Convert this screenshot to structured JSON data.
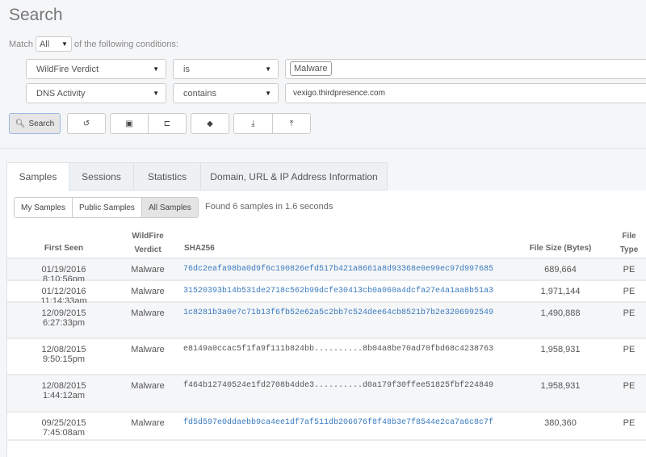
{
  "title": "Search",
  "match": {
    "prefix": "Match",
    "value": "All",
    "suffix": "of the following conditions:"
  },
  "conditions": [
    {
      "field": "WildFire Verdict",
      "operator": "is",
      "value": "Malware",
      "value_style": "tag"
    },
    {
      "field": "DNS Activity",
      "operator": "contains",
      "value": "vexigo.thirdpresence.com",
      "value_style": "text"
    }
  ],
  "toolbar": {
    "search_label": "Search",
    "icons": [
      "search-icon",
      "history-icon",
      "save-icon",
      "folder-open-icon",
      "tags-icon",
      "download-icon",
      "upload-icon"
    ]
  },
  "tabs": [
    "Samples",
    "Sessions",
    "Statistics",
    "Domain, URL & IP Address Information"
  ],
  "active_tab": "Samples",
  "filters": [
    "My Samples",
    "Public Samples",
    "All Samples"
  ],
  "active_filter": "All Samples",
  "result_text": "Found 6 samples in 1.6 seconds",
  "table": {
    "headers": [
      "First Seen",
      "WildFire Verdict",
      "SHA256",
      "File Size (Bytes)",
      "File Type"
    ],
    "rows": [
      {
        "first_seen": "01/19/2016 8:10:56pm",
        "verdict": "Malware",
        "sha256": "76dc2eafa98ba0d9f6c190826efd517b421a8661a8d93368e0e99ec97d997685",
        "size": "689,664",
        "type": "PE",
        "link": true
      },
      {
        "first_seen": "01/12/2016 11:14:33am",
        "verdict": "Malware",
        "sha256": "31520393b14b531de2718c562b99dcfe30413cb0a060a4dcfa27e4a1aa8b51a3",
        "size": "1,971,144",
        "type": "PE",
        "link": true
      },
      {
        "first_seen": "12/09/2015 6:27:33pm",
        "verdict": "Malware",
        "sha256": "1c8281b3a0e7c71b13f6fb52e62a5c2bb7c524dee64cb8521b7b2e3206992549",
        "size": "1,490,888",
        "type": "PE",
        "link": true
      },
      {
        "first_seen": "12/08/2015 9:50:15pm",
        "verdict": "Malware",
        "sha256": "e8149a0ccac5f1fa9f111b824bb..........8b04a8be70ad70fbd68c4238763",
        "size": "1,958,931",
        "type": "PE",
        "link": false
      },
      {
        "first_seen": "12/08/2015 1:44:12am",
        "verdict": "Malware",
        "sha256": "f464b12740524e1fd2708b4dde3..........d0a179f30ffee51825fbf224849",
        "size": "1,958,931",
        "type": "PE",
        "link": false
      },
      {
        "first_seen": "09/25/2015 7:45:08am",
        "verdict": "Malware",
        "sha256": "fd5d597e0ddaebb9ca4ee1df7af511db206676f8f48b3e7f8544e2ca7a6c8c7f",
        "size": "380,360",
        "type": "PE",
        "link": true
      }
    ]
  },
  "colors": {
    "link": "#3b7bbf",
    "background": "#f5f6f8",
    "row_alt": "#f5f6f8"
  }
}
